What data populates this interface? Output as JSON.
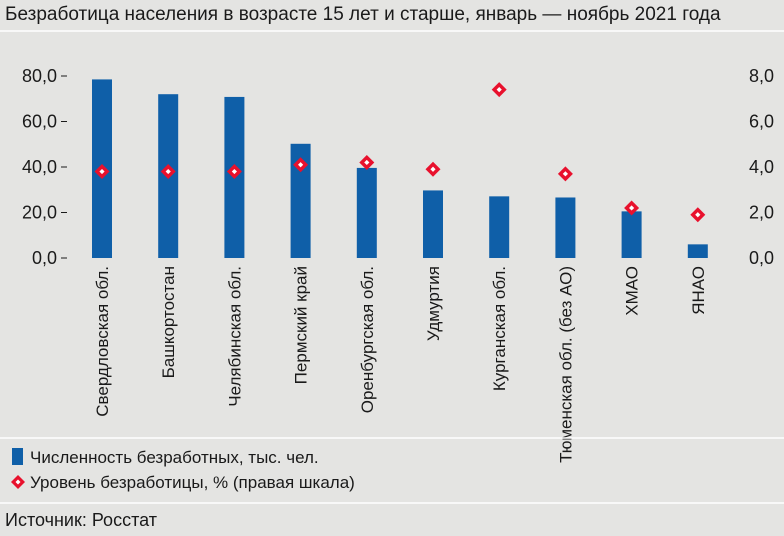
{
  "chart_data": {
    "type": "bar",
    "title": "Безработица населения в возрасте 15 лет и старше, январь — ноябрь 2021 года",
    "categories": [
      "Свердловская обл.",
      "Башкортостан",
      "Челябинская обл.",
      "Пермский край",
      "Оренбургская обл.",
      "Удмуртия",
      "Курганская обл.",
      "Тюменская обл. (без АО)",
      "ХМАО",
      "ЯНАО"
    ],
    "series": [
      {
        "name": "Численность безработных, тыс. чел.",
        "type": "bar",
        "axis": "left",
        "color": "#0f5fa8",
        "values": [
          78.5,
          72.0,
          70.8,
          50.2,
          39.6,
          29.7,
          27.1,
          26.6,
          20.5,
          6.0
        ]
      },
      {
        "name": "Уровень безработицы, % (правая шкала)",
        "type": "scatter",
        "axis": "right",
        "color": "#e8112d",
        "values": [
          3.8,
          3.8,
          3.8,
          4.1,
          4.2,
          3.9,
          7.4,
          3.7,
          2.2,
          1.9
        ]
      }
    ],
    "y_left": {
      "ylim": [
        0,
        80
      ],
      "ticks": [
        "0,0",
        "20,0",
        "40,0",
        "60,0",
        "80,0"
      ]
    },
    "y_right": {
      "ylim": [
        0,
        8
      ],
      "ticks": [
        "0,0",
        "2,0",
        "4,0",
        "6,0",
        "8,0"
      ]
    },
    "legend": "bottom-left",
    "grid": false
  },
  "source": "Источник: Росстат"
}
